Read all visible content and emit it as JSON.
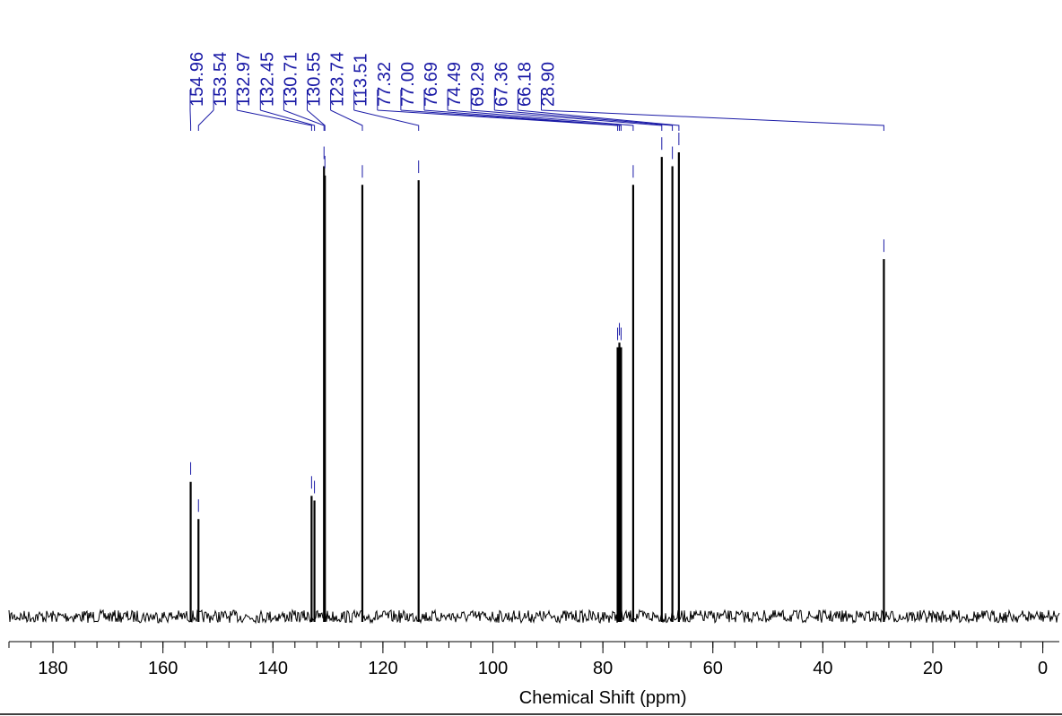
{
  "chart_data": {
    "type": "line",
    "title": "",
    "xlabel": "Chemical Shift (ppm)",
    "ylabel": "",
    "xlim": [
      188,
      -3
    ],
    "x_reversed": true,
    "major_ticks": [
      180,
      160,
      140,
      120,
      100,
      80,
      60,
      40,
      20,
      0
    ],
    "tick_labels": [
      "180",
      "160",
      "140",
      "120",
      "100",
      "80",
      "60",
      "40",
      "20",
      "0"
    ],
    "minor_tick_step": 4,
    "grid": false,
    "legend": "none",
    "colors": {
      "spectrum": "#000000",
      "peak_labels": "#1a1aa6"
    },
    "peaks": [
      {
        "ppm": 154.96,
        "label": "154.96",
        "intensity": 0.29
      },
      {
        "ppm": 153.54,
        "label": "153.54",
        "intensity": 0.21
      },
      {
        "ppm": 132.97,
        "label": "132.97",
        "intensity": 0.26
      },
      {
        "ppm": 132.45,
        "label": "132.45",
        "intensity": 0.25
      },
      {
        "ppm": 130.71,
        "label": "130.71",
        "intensity": 0.97
      },
      {
        "ppm": 130.55,
        "label": "130.55",
        "intensity": 0.95
      },
      {
        "ppm": 123.74,
        "label": "123.74",
        "intensity": 0.93
      },
      {
        "ppm": 113.51,
        "label": "113.51",
        "intensity": 0.94
      },
      {
        "ppm": 77.32,
        "label": "77.32",
        "intensity": 0.58
      },
      {
        "ppm": 77.0,
        "label": "77.00",
        "intensity": 0.59
      },
      {
        "ppm": 76.69,
        "label": "76.69",
        "intensity": 0.58
      },
      {
        "ppm": 74.49,
        "label": "74.49",
        "intensity": 0.93
      },
      {
        "ppm": 69.29,
        "label": "69.29",
        "intensity": 0.99
      },
      {
        "ppm": 67.36,
        "label": "67.36",
        "intensity": 0.97
      },
      {
        "ppm": 66.18,
        "label": "66.18",
        "intensity": 1.0
      },
      {
        "ppm": 28.9,
        "label": "28.90",
        "intensity": 0.77
      }
    ]
  }
}
